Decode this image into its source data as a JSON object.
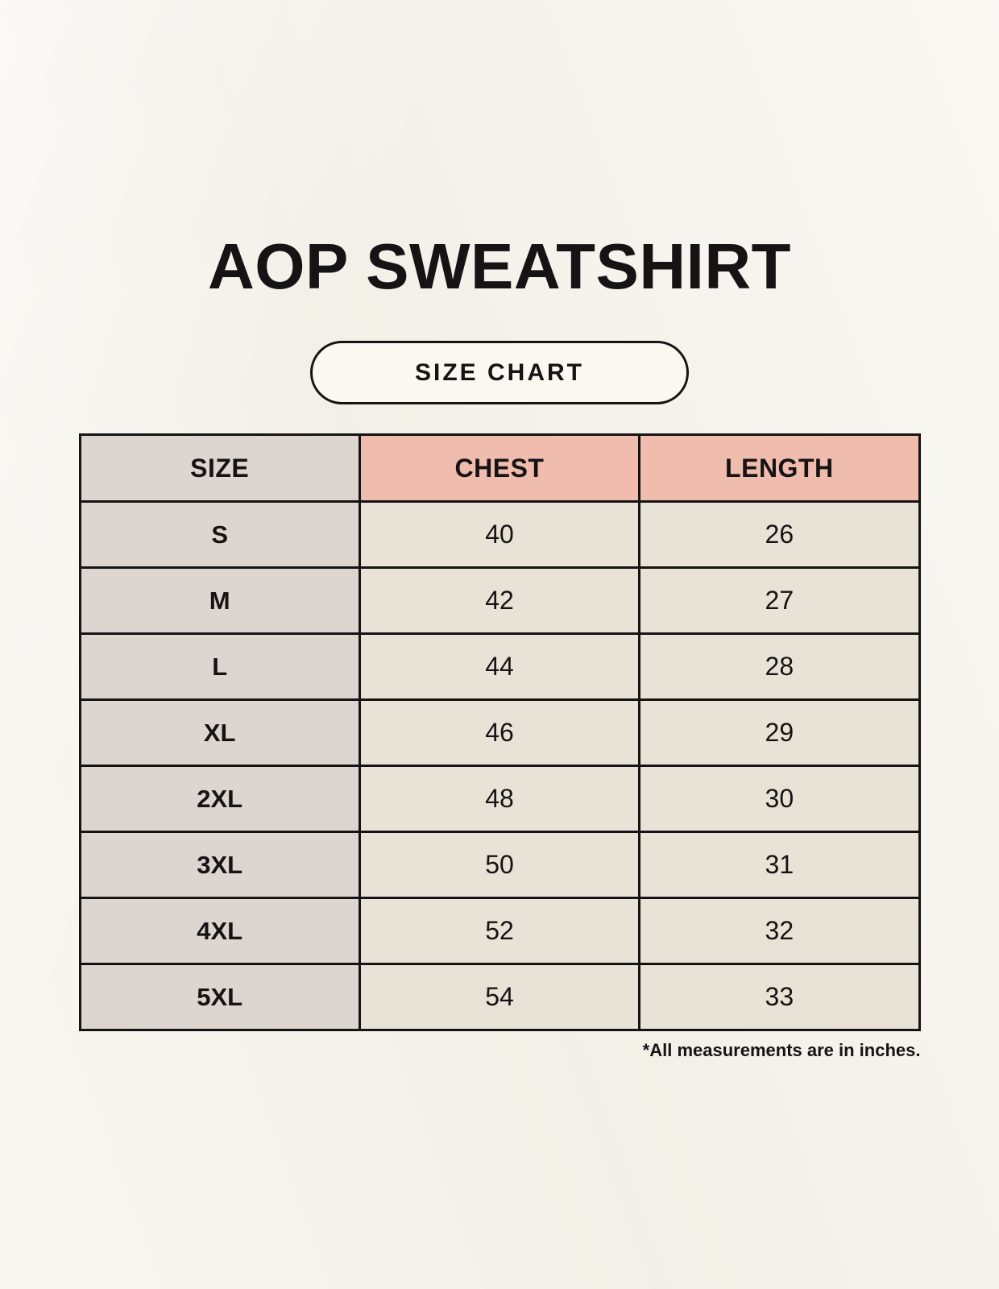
{
  "chart_data": {
    "type": "table",
    "title": "AOP SWEATSHIRT",
    "badge": "SIZE CHART",
    "columns": [
      "SIZE",
      "CHEST",
      "LENGTH"
    ],
    "rows": [
      {
        "size": "S",
        "chest": "40",
        "length": "26"
      },
      {
        "size": "M",
        "chest": "42",
        "length": "27"
      },
      {
        "size": "L",
        "chest": "44",
        "length": "28"
      },
      {
        "size": "XL",
        "chest": "46",
        "length": "29"
      },
      {
        "size": "2XL",
        "chest": "48",
        "length": "30"
      },
      {
        "size": "3XL",
        "chest": "50",
        "length": "31"
      },
      {
        "size": "4XL",
        "chest": "52",
        "length": "32"
      },
      {
        "size": "5XL",
        "chest": "54",
        "length": "33"
      }
    ],
    "note": "*All measurements are in inches."
  },
  "colors": {
    "page-bg": "#f7f4ec",
    "badge-bg": "#fbf8f1",
    "header-pink": "#f0bcad",
    "size-col-gray": "#ddd5d0",
    "cell-beige": "#e9e2d7",
    "ink": "#151313"
  }
}
